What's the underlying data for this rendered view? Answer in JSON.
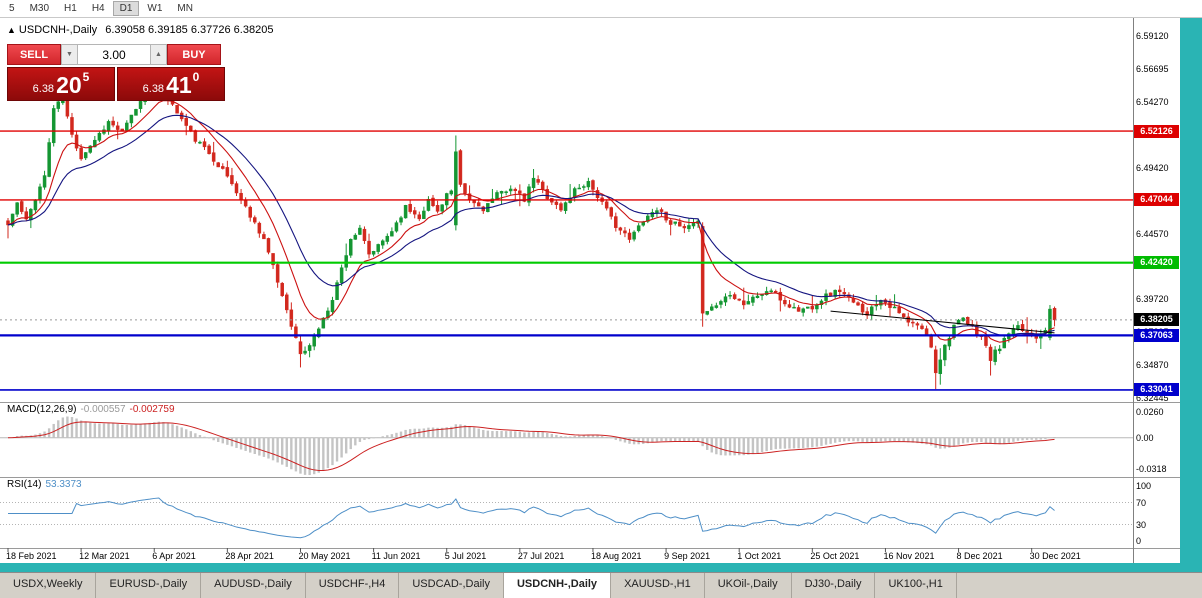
{
  "colors": {
    "up": "#149632",
    "down": "#d2281e",
    "workspace": "#2ab4b4",
    "ma_fast": "#cc1111",
    "ma_slow": "#151580",
    "macd_bar": "#c4c4c4",
    "macd_signal": "#cc2222",
    "rsi_line": "#4e8fc7"
  },
  "toolbar": {
    "timeframes": [
      {
        "label": "5"
      },
      {
        "label": "M30"
      },
      {
        "label": "H1"
      },
      {
        "label": "H4"
      },
      {
        "label": "D1",
        "active": true
      },
      {
        "label": "W1"
      },
      {
        "label": "MN"
      }
    ]
  },
  "chart": {
    "panel_toggle": "▲",
    "symbol": "USDCNH-,Daily",
    "ohlc": "6.39058 6.39185 6.37726 6.38205"
  },
  "trade_panel": {
    "sell_label": "SELL",
    "buy_label": "BUY",
    "volume": "3.00",
    "spin_down": "▼",
    "spin_up": "▲",
    "sell_price": {
      "prefix": "6.38",
      "big": "20",
      "sup": "5"
    },
    "buy_price": {
      "prefix": "6.38",
      "big": "41",
      "sup": "0"
    }
  },
  "price_axis": {
    "ticks": [
      {
        "label": "6.59120",
        "price": 6.5912
      },
      {
        "label": "6.56695",
        "price": 6.56695
      },
      {
        "label": "6.54270",
        "price": 6.5427
      },
      {
        "label": "6.51845",
        "price": 6.51845
      },
      {
        "label": "6.49420",
        "price": 6.4942
      },
      {
        "label": "6.46995",
        "price": 6.46995
      },
      {
        "label": "6.44570",
        "price": 6.4457
      },
      {
        "label": "6.42145",
        "price": 6.42145
      },
      {
        "label": "6.39720",
        "price": 6.3972
      },
      {
        "label": "6.37295",
        "price": 6.37295
      },
      {
        "label": "6.34870",
        "price": 6.3487
      },
      {
        "label": "6.32445",
        "price": 6.32445
      }
    ],
    "badges": [
      {
        "label": "6.52126",
        "price": 6.52126,
        "bg": "#dd0000"
      },
      {
        "label": "6.47044",
        "price": 6.47044,
        "bg": "#dd0000"
      },
      {
        "label": "6.42420",
        "price": 6.4242,
        "bg": "#00bb00"
      },
      {
        "label": "6.38205",
        "price": 6.38205,
        "bg": "#000000"
      },
      {
        "label": "6.37063",
        "price": 6.37063,
        "bg": "#0000cc"
      },
      {
        "label": "6.33041",
        "price": 6.33041,
        "bg": "#0000cc"
      }
    ]
  },
  "hlines": [
    {
      "price": 6.52126,
      "color": "#e00000",
      "width": 1.4
    },
    {
      "price": 6.47044,
      "color": "#e00000",
      "width": 1.4
    },
    {
      "price": 6.4242,
      "color": "#00cc00",
      "width": 2.2
    },
    {
      "price": 6.37063,
      "color": "#0000cc",
      "width": 2.2
    },
    {
      "price": 6.33041,
      "color": "#0000cc",
      "width": 1.6
    }
  ],
  "bid_line": {
    "price": 6.38205,
    "color": "#999999"
  },
  "trendline": {
    "d1": 180,
    "p1": 6.3885,
    "d2": 229,
    "p2": 6.3725,
    "color": "#000000"
  },
  "macd": {
    "title": "MACD(12,26,9)",
    "v1": "-0.000557",
    "v2": "-0.002759",
    "ticks": [
      {
        "label": "0.0260",
        "value": 0.026
      },
      {
        "label": "0.00",
        "value": 0
      },
      {
        "label": "-0.0318",
        "value": -0.0318
      }
    ]
  },
  "rsi": {
    "title": "RSI(14)",
    "value": "53.3373",
    "levels": [
      70,
      30
    ],
    "ticks": [
      {
        "label": "100",
        "value": 100
      },
      {
        "label": "70",
        "value": 70
      },
      {
        "label": "30",
        "value": 30
      },
      {
        "label": "0",
        "value": 0
      }
    ]
  },
  "dates": [
    {
      "day": 0,
      "label": "18 Feb 2021"
    },
    {
      "day": 16,
      "label": "12 Mar 2021"
    },
    {
      "day": 32,
      "label": "6 Apr 2021"
    },
    {
      "day": 48,
      "label": "28 Apr 2021"
    },
    {
      "day": 64,
      "label": "20 May 2021"
    },
    {
      "day": 80,
      "label": "11 Jun 2021"
    },
    {
      "day": 96,
      "label": "5 Jul 2021"
    },
    {
      "day": 112,
      "label": "27 Jul 2021"
    },
    {
      "day": 128,
      "label": "18 Aug 2021"
    },
    {
      "day": 144,
      "label": "9 Sep 2021"
    },
    {
      "day": 160,
      "label": "1 Oct 2021"
    },
    {
      "day": 176,
      "label": "25 Oct 2021"
    },
    {
      "day": 192,
      "label": "16 Nov 2021"
    },
    {
      "day": 208,
      "label": "8 Dec 2021"
    },
    {
      "day": 224,
      "label": "30 Dec 2021"
    }
  ],
  "tabs": [
    {
      "label": "USDX,Weekly"
    },
    {
      "label": "EURUSD-,Daily"
    },
    {
      "label": "AUDUSD-,Daily"
    },
    {
      "label": "USDCHF-,H4"
    },
    {
      "label": "USDCAD-,Daily"
    },
    {
      "label": "USDCNH-,Daily",
      "active": true
    },
    {
      "label": "XAUUSD-,H1"
    },
    {
      "label": "UKOil-,Daily"
    },
    {
      "label": "DJ30-,Daily"
    },
    {
      "label": "UK100-,H1"
    }
  ],
  "chart_data": {
    "type": "candlestick",
    "title": "USDCNH-,Daily",
    "symbol": "USDCNH",
    "timeframe": "Daily",
    "seed": 11,
    "days": 230,
    "ma_fast": 10,
    "ma_slow": 21,
    "price_axis_top": 6.6046,
    "price_axis_bottom": 6.3215,
    "anchors": [
      [
        0,
        6.452
      ],
      [
        2,
        6.468
      ],
      [
        4,
        6.455
      ],
      [
        6,
        6.472
      ],
      [
        8,
        6.488
      ],
      [
        10,
        6.538
      ],
      [
        12,
        6.545
      ],
      [
        14,
        6.518
      ],
      [
        16,
        6.502
      ],
      [
        19,
        6.515
      ],
      [
        22,
        6.528
      ],
      [
        25,
        6.52
      ],
      [
        28,
        6.538
      ],
      [
        31,
        6.552
      ],
      [
        33,
        6.556
      ],
      [
        35,
        6.545
      ],
      [
        38,
        6.53
      ],
      [
        41,
        6.515
      ],
      [
        44,
        6.505
      ],
      [
        48,
        6.488
      ],
      [
        52,
        6.465
      ],
      [
        56,
        6.442
      ],
      [
        59,
        6.41
      ],
      [
        61,
        6.39
      ],
      [
        63,
        6.368
      ],
      [
        65,
        6.358
      ],
      [
        67,
        6.37
      ],
      [
        69,
        6.382
      ],
      [
        71,
        6.398
      ],
      [
        73,
        6.42
      ],
      [
        75,
        6.442
      ],
      [
        77,
        6.448
      ],
      [
        79,
        6.43
      ],
      [
        81,
        6.436
      ],
      [
        84,
        6.448
      ],
      [
        87,
        6.465
      ],
      [
        90,
        6.458
      ],
      [
        92,
        6.47
      ],
      [
        94,
        6.462
      ],
      [
        96,
        6.475
      ],
      [
        99,
        6.48
      ],
      [
        101,
        6.47
      ],
      [
        104,
        6.464
      ],
      [
        107,
        6.474
      ],
      [
        110,
        6.48
      ],
      [
        113,
        6.47
      ],
      [
        115,
        6.487
      ],
      [
        118,
        6.473
      ],
      [
        121,
        6.463
      ],
      [
        124,
        6.478
      ],
      [
        127,
        6.484
      ],
      [
        130,
        6.468
      ],
      [
        133,
        6.452
      ],
      [
        136,
        6.441
      ],
      [
        139,
        6.456
      ],
      [
        142,
        6.464
      ],
      [
        145,
        6.454
      ],
      [
        148,
        6.449
      ],
      [
        151,
        6.453
      ],
      [
        152,
        6.388
      ],
      [
        155,
        6.393
      ],
      [
        158,
        6.402
      ],
      [
        161,
        6.394
      ],
      [
        164,
        6.4
      ],
      [
        167,
        6.404
      ],
      [
        170,
        6.394
      ],
      [
        173,
        6.389
      ],
      [
        176,
        6.392
      ],
      [
        179,
        6.4
      ],
      [
        182,
        6.404
      ],
      [
        185,
        6.394
      ],
      [
        188,
        6.387
      ],
      [
        191,
        6.398
      ],
      [
        194,
        6.39
      ],
      [
        197,
        6.38
      ],
      [
        200,
        6.376
      ],
      [
        202,
        6.363
      ],
      [
        203,
        6.345
      ],
      [
        205,
        6.363
      ],
      [
        207,
        6.378
      ],
      [
        209,
        6.382
      ],
      [
        211,
        6.376
      ],
      [
        213,
        6.37
      ],
      [
        215,
        6.354
      ],
      [
        217,
        6.362
      ],
      [
        219,
        6.372
      ],
      [
        221,
        6.376
      ],
      [
        223,
        6.373
      ],
      [
        225,
        6.37
      ],
      [
        227,
        6.376
      ],
      [
        229,
        6.382
      ]
    ],
    "overrides": {
      "64": [
        6.366,
        6.37,
        6.347,
        6.357
      ],
      "98": [
        6.452,
        6.518,
        6.448,
        6.506
      ],
      "152": [
        6.451,
        6.454,
        6.377,
        6.387
      ],
      "203": [
        6.36,
        6.363,
        6.331,
        6.343
      ],
      "215": [
        6.362,
        6.364,
        6.341,
        6.352
      ],
      "228": [
        6.369,
        6.393,
        6.367,
        6.39
      ],
      "229": [
        6.39058,
        6.39185,
        6.37726,
        6.38205
      ]
    },
    "last_ohlc": {
      "open": 6.39058,
      "high": 6.39185,
      "low": 6.37726,
      "close": 6.38205
    }
  }
}
